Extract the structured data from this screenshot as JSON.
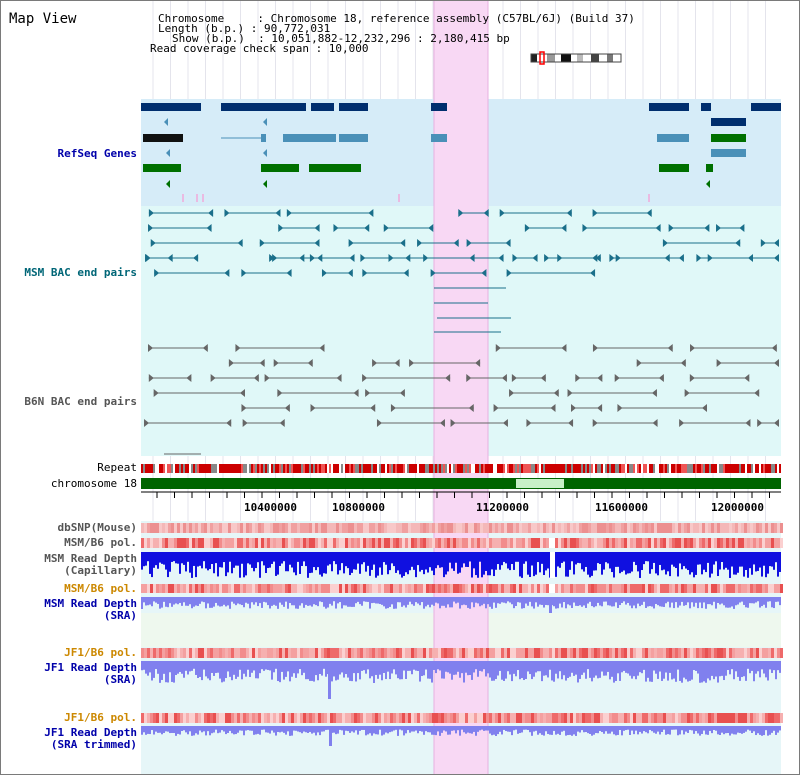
{
  "title": "Map View",
  "header": {
    "chromosome": "Chromosome     : Chromosome 18, reference assembly (C57BL/6J) (Build 37)",
    "length": "Length (b.p.) : 90,772,031",
    "show": "Show (b.p.)  : 10,051,882-12,232,296 : 2,180,415 bp",
    "coverage": "Read coverage check span : 10,000"
  },
  "tracks": {
    "refseq": "RefSeq Genes",
    "msm_bac": "MSM BAC end pairs",
    "b6n_bac": "B6N BAC end pairs",
    "repeat": "Repeat",
    "chromosome": "chromosome 18",
    "dbsnp": "dbSNP(Mouse)",
    "msm_b6_pol_cap": "MSM/B6 pol.",
    "msm_depth_cap": "MSM Read Depth",
    "msm_depth_cap_sub": "(Capillary)",
    "msm_b6_pol_sra": "MSM/B6 pol.",
    "msm_depth_sra": "MSM Read Depth",
    "msm_depth_sra_sub": "(SRA)",
    "jf1_b6_pol": "JF1/B6 pol.",
    "jf1_depth": "JF1 Read Depth",
    "jf1_depth_sub": "(SRA)",
    "jf1_b6_pol_trim": "JF1/B6 pol.",
    "jf1_depth_trim": "JF1 Read Depth",
    "jf1_depth_trim_sub": "(SRA trimmed)"
  },
  "axis_ticks": [
    "10400000",
    "10800000",
    "11200000",
    "11600000",
    "12000000"
  ],
  "colors": {
    "label_blue": "#0000aa",
    "label_teal": "#006677",
    "label_gray": "#555555",
    "label_orange": "#cc8800",
    "highlight": "#f8d8f4",
    "refseq_bg": "#d6ecf8",
    "bac_bg": "#e0f8f8",
    "gene_dark": "#002e6e",
    "gene_mid": "#4a90b8",
    "gene_green": "#007000",
    "chrom_green": "#006400",
    "depth_blue": "#1010e0",
    "depth_light": "#8080ee"
  }
}
